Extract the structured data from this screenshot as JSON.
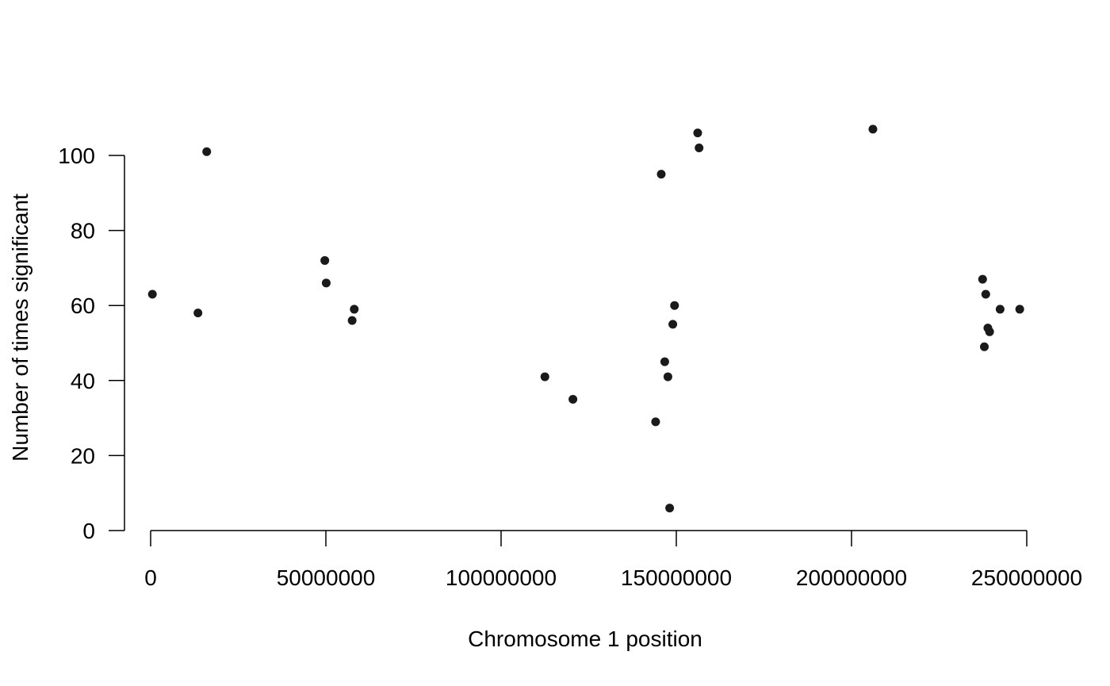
{
  "chart_data": {
    "type": "scatter",
    "title": "",
    "xlabel": "Chromosome 1 position",
    "ylabel": "Number of times significant",
    "xlim": [
      0,
      250000000
    ],
    "ylim": [
      0,
      100
    ],
    "xticks": [
      {
        "value": 0,
        "label": "0"
      },
      {
        "value": 50000000,
        "label": "50000000"
      },
      {
        "value": 100000000,
        "label": "100000000"
      },
      {
        "value": 150000000,
        "label": "150000000"
      },
      {
        "value": 200000000,
        "label": "200000000"
      },
      {
        "value": 250000000,
        "label": "250000000"
      }
    ],
    "yticks": [
      {
        "value": 0,
        "label": "0"
      },
      {
        "value": 20,
        "label": "20"
      },
      {
        "value": 40,
        "label": "40"
      },
      {
        "value": 60,
        "label": "60"
      },
      {
        "value": 80,
        "label": "80"
      },
      {
        "value": 100,
        "label": "100"
      }
    ],
    "grid": false,
    "point_color": "#1a1a1a",
    "points": [
      {
        "x": 500000,
        "y": 63
      },
      {
        "x": 13500000,
        "y": 58
      },
      {
        "x": 16000000,
        "y": 101
      },
      {
        "x": 49700000,
        "y": 72
      },
      {
        "x": 50100000,
        "y": 66
      },
      {
        "x": 57500000,
        "y": 56
      },
      {
        "x": 58100000,
        "y": 59
      },
      {
        "x": 112500000,
        "y": 41
      },
      {
        "x": 120500000,
        "y": 35
      },
      {
        "x": 144100000,
        "y": 29
      },
      {
        "x": 145700000,
        "y": 95
      },
      {
        "x": 146700000,
        "y": 45
      },
      {
        "x": 147600000,
        "y": 41
      },
      {
        "x": 148100000,
        "y": 6
      },
      {
        "x": 149000000,
        "y": 55
      },
      {
        "x": 149500000,
        "y": 60
      },
      {
        "x": 156100000,
        "y": 106
      },
      {
        "x": 156500000,
        "y": 102
      },
      {
        "x": 206100000,
        "y": 107
      },
      {
        "x": 237400000,
        "y": 67
      },
      {
        "x": 237900000,
        "y": 49
      },
      {
        "x": 238300000,
        "y": 63
      },
      {
        "x": 238900000,
        "y": 54
      },
      {
        "x": 239400000,
        "y": 53
      },
      {
        "x": 242400000,
        "y": 59
      },
      {
        "x": 248000000,
        "y": 59
      }
    ]
  }
}
